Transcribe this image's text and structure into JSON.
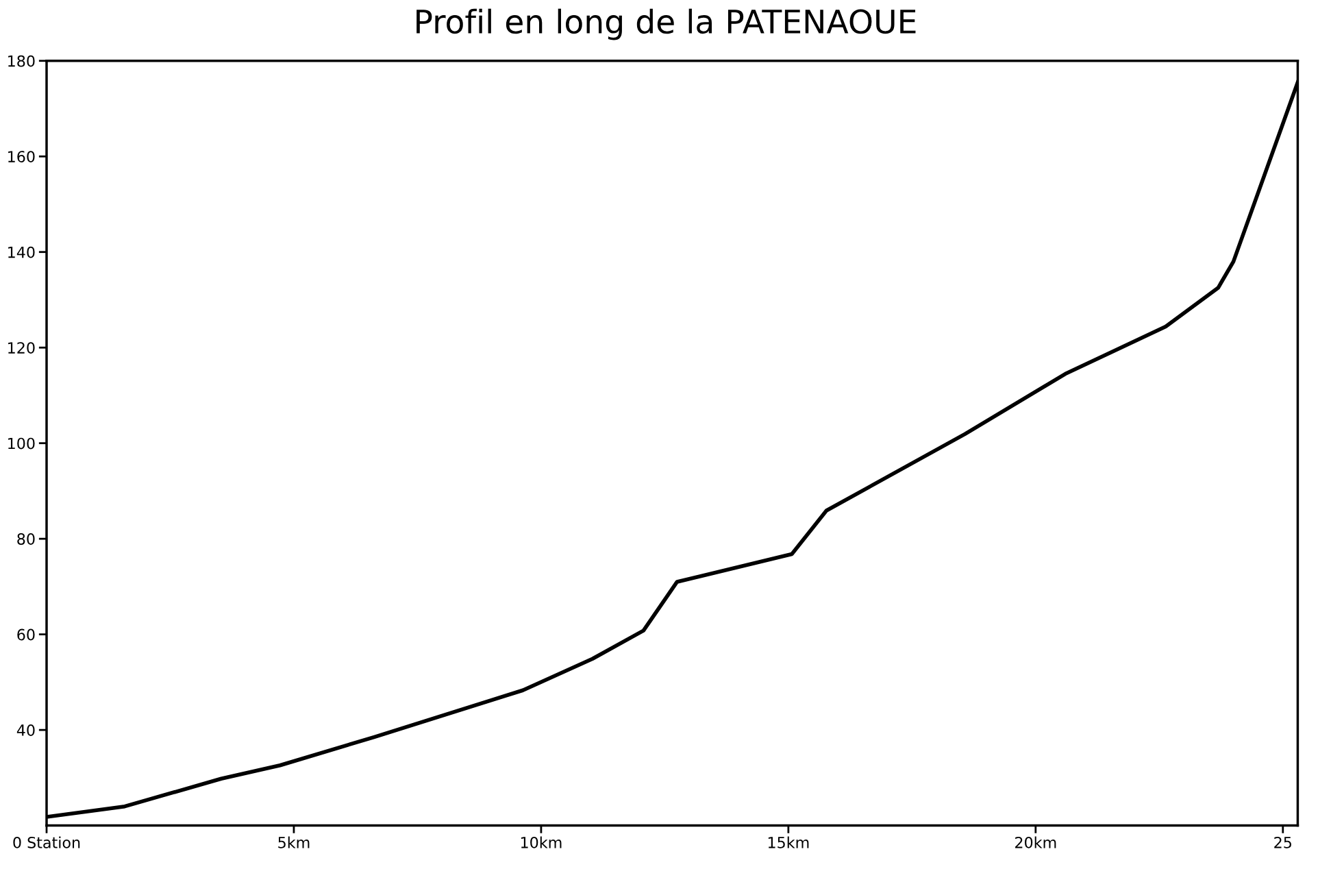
{
  "chart_data": {
    "type": "line",
    "title": "Profil en long de la PATENAOUE",
    "x": [
      0,
      1.58,
      3.53,
      4.72,
      6.62,
      9.63,
      11.04,
      12.07,
      12.75,
      15.07,
      15.77,
      18.57,
      20.6,
      22.63,
      23.69,
      24.0,
      25.3
    ],
    "series": [
      {
        "color": "#000000",
        "values": [
          21.8,
          24.0,
          29.8,
          32.6,
          38.5,
          48.3,
          54.9,
          60.8,
          71.0,
          76.8,
          85.9,
          101.9,
          114.5,
          124.4,
          132.5,
          138.0,
          175.5
        ]
      }
    ],
    "xlim": [
      0,
      25.3
    ],
    "xticks": [
      {
        "value": 0,
        "label": "0 Station"
      },
      {
        "value": 5,
        "label": "5km"
      },
      {
        "value": 10,
        "label": "10km"
      },
      {
        "value": 15,
        "label": "15km"
      },
      {
        "value": 20,
        "label": "20km"
      },
      {
        "value": 25,
        "label": "25"
      }
    ],
    "ylim": [
      20,
      180
    ],
    "yticks": [
      40,
      60,
      80,
      100,
      120,
      140,
      160,
      180
    ],
    "marker": "none",
    "line_style": "solid"
  }
}
